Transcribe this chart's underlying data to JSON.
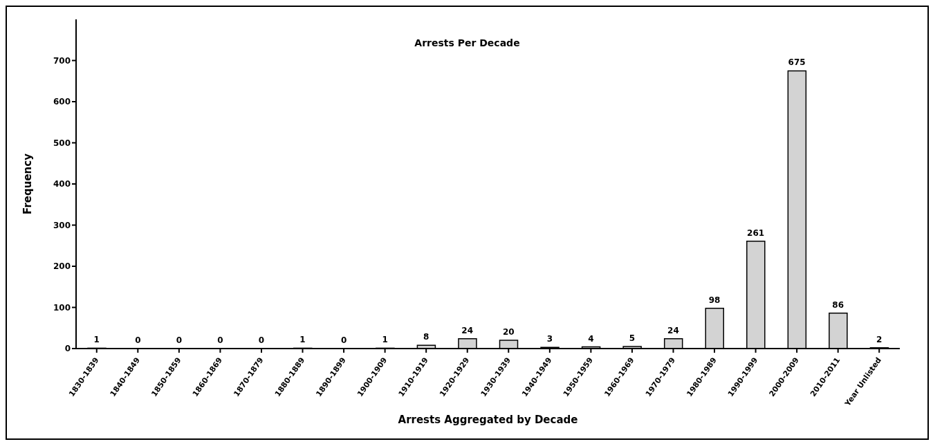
{
  "chart_data": {
    "type": "bar",
    "title": "Arrests Per Decade",
    "xlabel": "Arrests Aggregated by Decade",
    "ylabel": "Frequency",
    "categories": [
      "1830-1839",
      "1840-1849",
      "1850-1859",
      "1860-1869",
      "1870-1879",
      "1880-1889",
      "1890-1899",
      "1900-1909",
      "1910-1919",
      "1920-1929",
      "1930-1939",
      "1940-1949",
      "1950-1959",
      "1960-1969",
      "1970-1979",
      "1980-1989",
      "1990-1999",
      "2000-2009",
      "2010-2011",
      "Year Unlisted"
    ],
    "values": [
      1,
      0,
      0,
      0,
      0,
      1,
      0,
      1,
      8,
      24,
      20,
      3,
      4,
      5,
      24,
      98,
      261,
      675,
      86,
      2
    ],
    "color": "#d3d3d3",
    "ylim": [
      0,
      800
    ],
    "yticks": [
      0,
      100,
      200,
      300,
      400,
      500,
      600,
      700
    ],
    "grid": false,
    "data_labels": true
  }
}
